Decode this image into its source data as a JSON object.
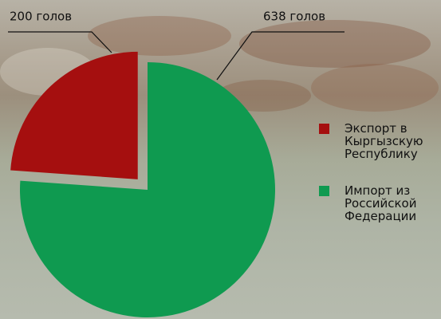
{
  "chart_data": {
    "type": "pie",
    "categories": [
      "Экспорт в Кыргызскую Республику",
      "Импорт из Российской Федерации"
    ],
    "values": [
      200,
      638
    ],
    "value_labels": [
      "200 голов",
      "638 голов"
    ],
    "colors": [
      "#a50f0f",
      "#0f9a50"
    ],
    "exploded": [
      true,
      false
    ],
    "legend": "right"
  }
}
